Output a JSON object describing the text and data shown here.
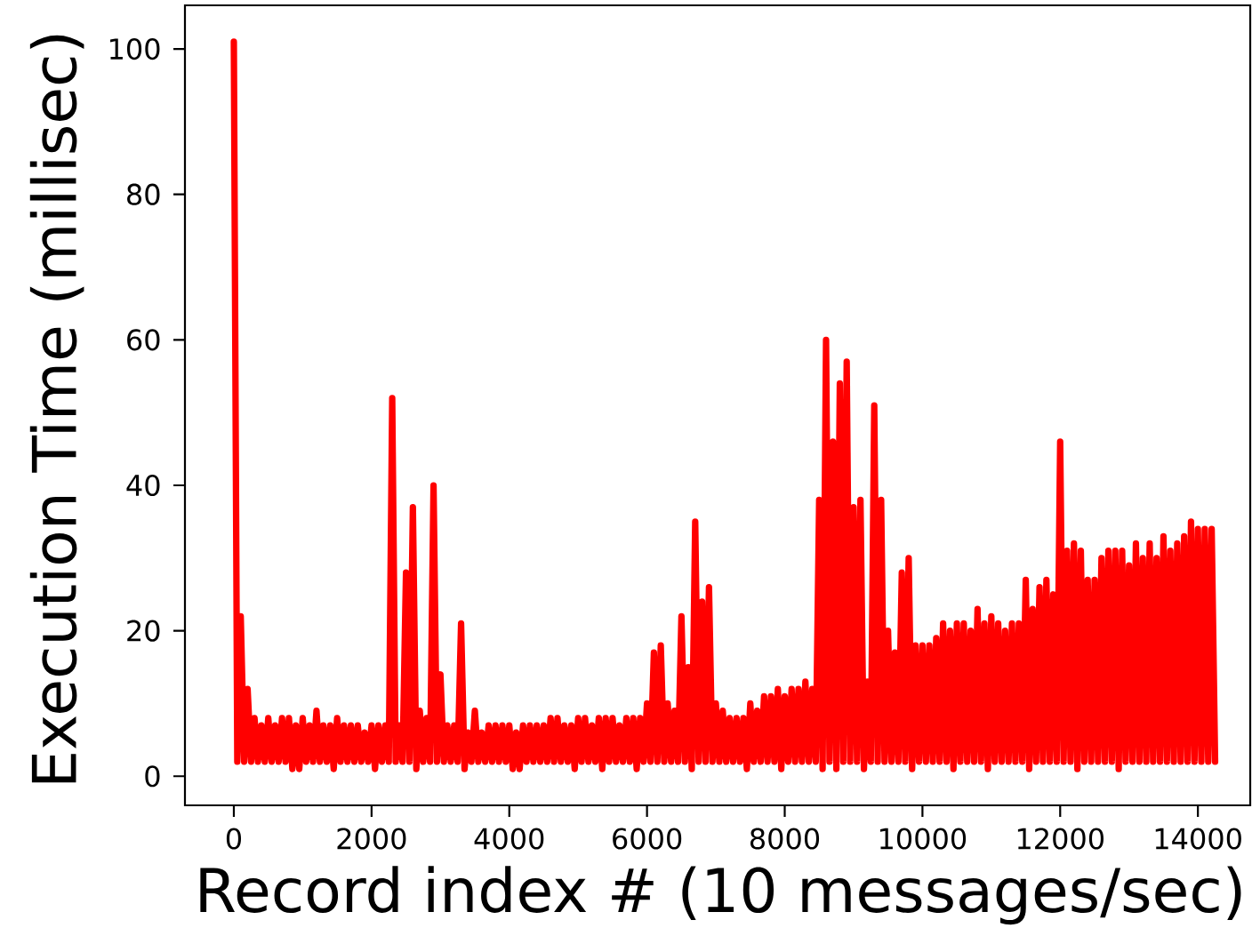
{
  "chart_data": {
    "type": "line",
    "xlabel": "Record index # (10 messages/sec)",
    "ylabel": "Execution Time (millisec)",
    "x": [
      0,
      50,
      100,
      150,
      200,
      250,
      300,
      350,
      400,
      450,
      500,
      550,
      600,
      650,
      700,
      750,
      800,
      850,
      900,
      950,
      1000,
      1050,
      1100,
      1150,
      1200,
      1250,
      1300,
      1350,
      1400,
      1450,
      1500,
      1550,
      1600,
      1650,
      1700,
      1750,
      1800,
      1850,
      1900,
      1950,
      2000,
      2050,
      2100,
      2150,
      2200,
      2250,
      2300,
      2350,
      2400,
      2450,
      2500,
      2550,
      2600,
      2650,
      2700,
      2750,
      2800,
      2850,
      2900,
      2950,
      3000,
      3050,
      3100,
      3150,
      3200,
      3250,
      3300,
      3350,
      3400,
      3450,
      3500,
      3550,
      3600,
      3650,
      3700,
      3750,
      3800,
      3850,
      3900,
      3950,
      4000,
      4050,
      4100,
      4150,
      4200,
      4250,
      4300,
      4350,
      4400,
      4450,
      4500,
      4550,
      4600,
      4650,
      4700,
      4750,
      4800,
      4850,
      4900,
      4950,
      5000,
      5050,
      5100,
      5150,
      5200,
      5250,
      5300,
      5350,
      5400,
      5450,
      5500,
      5550,
      5600,
      5650,
      5700,
      5750,
      5800,
      5850,
      5900,
      5950,
      6000,
      6050,
      6100,
      6150,
      6200,
      6250,
      6300,
      6350,
      6400,
      6450,
      6500,
      6550,
      6600,
      6650,
      6700,
      6750,
      6800,
      6850,
      6900,
      6950,
      7000,
      7050,
      7100,
      7150,
      7200,
      7250,
      7300,
      7350,
      7400,
      7450,
      7500,
      7550,
      7600,
      7650,
      7700,
      7750,
      7800,
      7850,
      7900,
      7950,
      8000,
      8050,
      8100,
      8150,
      8200,
      8250,
      8300,
      8350,
      8400,
      8450,
      8500,
      8550,
      8600,
      8650,
      8700,
      8750,
      8800,
      8850,
      8900,
      8950,
      9000,
      9050,
      9100,
      9150,
      9200,
      9250,
      9300,
      9350,
      9400,
      9450,
      9500,
      9550,
      9600,
      9650,
      9700,
      9750,
      9800,
      9850,
      9900,
      9950,
      10000,
      10050,
      10100,
      10150,
      10200,
      10250,
      10300,
      10350,
      10400,
      10450,
      10500,
      10550,
      10600,
      10650,
      10700,
      10750,
      10800,
      10850,
      10900,
      10950,
      11000,
      11050,
      11100,
      11150,
      11200,
      11250,
      11300,
      11350,
      11400,
      11450,
      11500,
      11550,
      11600,
      11650,
      11700,
      11750,
      11800,
      11850,
      11900,
      11950,
      12000,
      12050,
      12100,
      12150,
      12200,
      12250,
      12300,
      12350,
      12400,
      12450,
      12500,
      12550,
      12600,
      12650,
      12700,
      12750,
      12800,
      12850,
      12900,
      12950,
      13000,
      13050,
      13100,
      13150,
      13200,
      13250,
      13300,
      13350,
      13400,
      13450,
      13500,
      13550,
      13600,
      13650,
      13700,
      13750,
      13800,
      13850,
      13900,
      13950,
      14000,
      14050,
      14100,
      14150,
      14200,
      14250
    ],
    "values": [
      101,
      2,
      22,
      2,
      12,
      2,
      8,
      2,
      7,
      2,
      8,
      2,
      7,
      2,
      8,
      2,
      8,
      1,
      7,
      1,
      8,
      2,
      7,
      2,
      9,
      2,
      7,
      2,
      7,
      1,
      8,
      2,
      7,
      2,
      7,
      2,
      7,
      2,
      6,
      2,
      7,
      1,
      7,
      2,
      7,
      2,
      52,
      2,
      7,
      2,
      28,
      2,
      37,
      1,
      9,
      2,
      8,
      2,
      40,
      2,
      14,
      2,
      7,
      2,
      7,
      2,
      21,
      1,
      6,
      2,
      9,
      2,
      6,
      2,
      7,
      2,
      7,
      2,
      7,
      2,
      7,
      1,
      6,
      1,
      7,
      2,
      7,
      2,
      7,
      2,
      7,
      2,
      8,
      2,
      8,
      2,
      7,
      2,
      7,
      1,
      8,
      2,
      8,
      2,
      7,
      2,
      8,
      1,
      8,
      2,
      8,
      2,
      7,
      2,
      8,
      2,
      8,
      1,
      8,
      2,
      10,
      2,
      17,
      2,
      18,
      2,
      10,
      2,
      9,
      2,
      22,
      2,
      15,
      1,
      35,
      2,
      24,
      2,
      26,
      2,
      10,
      2,
      9,
      2,
      8,
      2,
      8,
      2,
      8,
      1,
      10,
      2,
      9,
      2,
      11,
      2,
      11,
      2,
      12,
      1,
      11,
      2,
      12,
      2,
      12,
      2,
      13,
      2,
      12,
      2,
      38,
      1,
      60,
      2,
      46,
      1,
      54,
      2,
      57,
      2,
      37,
      2,
      38,
      1,
      13,
      2,
      51,
      2,
      38,
      2,
      20,
      2,
      17,
      2,
      28,
      2,
      30,
      1,
      18,
      2,
      18,
      2,
      18,
      2,
      19,
      2,
      21,
      2,
      20,
      1,
      21,
      2,
      21,
      2,
      20,
      2,
      23,
      2,
      21,
      1,
      22,
      2,
      21,
      2,
      20,
      2,
      21,
      2,
      21,
      2,
      27,
      1,
      23,
      2,
      26,
      2,
      27,
      2,
      25,
      2,
      46,
      2,
      31,
      2,
      32,
      1,
      31,
      2,
      27,
      2,
      27,
      2,
      30,
      2,
      31,
      2,
      31,
      1,
      31,
      2,
      29,
      2,
      32,
      2,
      30,
      2,
      32,
      2,
      30,
      2,
      33,
      2,
      31,
      2,
      32,
      2,
      33,
      2,
      35,
      2,
      34,
      2,
      34,
      2,
      34,
      2
    ],
    "color": "#ff0000",
    "marker": "none",
    "line_style": "solid",
    "xlim": [
      -710,
      14760
    ],
    "ylim": [
      -4,
      106
    ],
    "xticks": [
      0,
      2000,
      4000,
      6000,
      8000,
      10000,
      12000,
      14000
    ],
    "yticks": [
      0,
      20,
      40,
      60,
      80,
      100
    ]
  }
}
